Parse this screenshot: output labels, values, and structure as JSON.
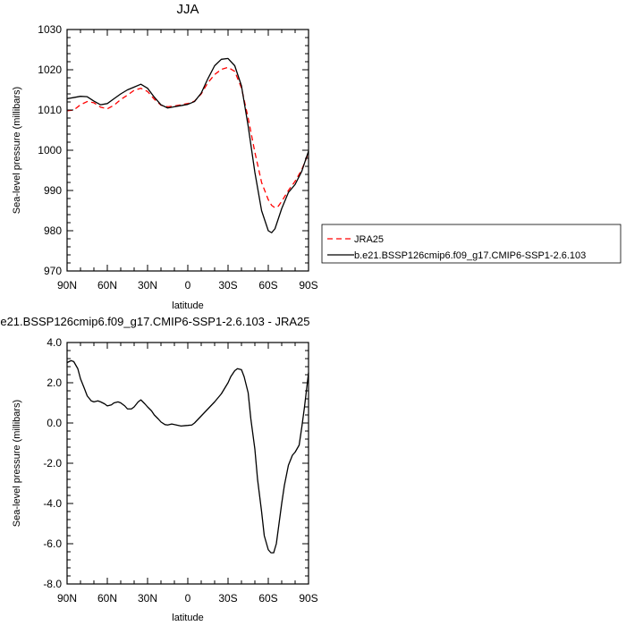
{
  "chart_data": [
    {
      "type": "line",
      "title": "JJA",
      "xlabel": "latitude",
      "ylabel": "Sea-level pressure (millibars)",
      "xlim": [
        90,
        -90
      ],
      "ylim": [
        970,
        1030
      ],
      "x_ticks": [
        90,
        60,
        30,
        0,
        -30,
        -60,
        -90
      ],
      "x_tick_labels": [
        "90N",
        "60N",
        "30N",
        "0",
        "30S",
        "60S",
        "90S"
      ],
      "y_ticks": [
        970,
        980,
        990,
        1000,
        1010,
        1020,
        1030
      ],
      "y_tick_labels": [
        "970",
        "980",
        "990",
        "1000",
        "1010",
        "1020",
        "1030"
      ],
      "legend_position": "right",
      "series": [
        {
          "name": "JRA25",
          "color": "#ff0000",
          "dash": "dashed",
          "x": [
            90,
            85,
            80,
            75,
            70,
            65,
            60,
            55,
            50,
            45,
            40,
            35,
            30,
            25,
            20,
            15,
            10,
            5,
            0,
            -5,
            -10,
            -15,
            -20,
            -25,
            -30,
            -35,
            -40,
            -45,
            -50,
            -55,
            -60,
            -62.5,
            -65,
            -67.5,
            -70,
            -75,
            -80,
            -85,
            -90
          ],
          "y": [
            1009.8,
            1010.0,
            1011.3,
            1012.1,
            1011.8,
            1010.7,
            1010.3,
            1011.2,
            1012.6,
            1013.7,
            1014.9,
            1015.4,
            1014.6,
            1012.7,
            1011.2,
            1010.8,
            1011.0,
            1011.3,
            1011.6,
            1012.2,
            1014.0,
            1016.8,
            1018.8,
            1020.1,
            1020.6,
            1019.6,
            1015.5,
            1008.0,
            999.5,
            992.0,
            987.7,
            986.3,
            985.7,
            986.1,
            987.3,
            990.0,
            992.3,
            995.2,
            999.3
          ]
        },
        {
          "name": "b.e21.BSSP126cmip6.f09_g17.CMIP6-SSP1-2.6.103",
          "color": "#000000",
          "dash": "solid",
          "x": [
            90,
            85,
            80,
            75,
            70,
            65,
            60,
            55,
            50,
            45,
            40,
            35,
            30,
            25,
            20,
            15,
            10,
            5,
            0,
            -5,
            -10,
            -15,
            -20,
            -25,
            -30,
            -35,
            -40,
            -45,
            -50,
            -55,
            -60,
            -62.5,
            -65,
            -67.5,
            -70,
            -75,
            -80,
            -85,
            -90
          ],
          "y": [
            1012.8,
            1013.1,
            1013.4,
            1013.3,
            1012.2,
            1011.3,
            1011.6,
            1012.8,
            1014.0,
            1015.0,
            1015.7,
            1016.4,
            1015.4,
            1013.2,
            1011.3,
            1010.5,
            1010.8,
            1011.1,
            1011.4,
            1012.1,
            1014.2,
            1017.8,
            1021.0,
            1022.6,
            1022.8,
            1021.0,
            1016.0,
            1006.0,
            994.5,
            985.0,
            980.0,
            979.5,
            980.5,
            983.0,
            985.5,
            989.5,
            991.5,
            994.8,
            999.8
          ]
        }
      ]
    },
    {
      "type": "line",
      "title": "b.e21.BSSP126cmip6.f09_g17.CMIP6-SSP1-2.6.103 - JRA25",
      "xlabel": "latitude",
      "ylabel": "Sea-level pressure (millibars)",
      "xlim": [
        90,
        -90
      ],
      "ylim": [
        -8,
        4
      ],
      "x_ticks": [
        90,
        60,
        30,
        0,
        -30,
        -60,
        -90
      ],
      "x_tick_labels": [
        "90N",
        "60N",
        "30N",
        "0",
        "30S",
        "60S",
        "90S"
      ],
      "y_ticks": [
        -8,
        -6,
        -4,
        -2,
        0,
        2,
        4
      ],
      "y_tick_labels": [
        "-8.0",
        "-6.0",
        "-4.0",
        "-2.0",
        "0.0",
        "2.0",
        "4.0"
      ],
      "series": [
        {
          "color": "#000000",
          "dash": "solid",
          "x": [
            90,
            87,
            85,
            82,
            80,
            77,
            75,
            72,
            70,
            67,
            65,
            62,
            60,
            57,
            55,
            52,
            50,
            47,
            45,
            42,
            40,
            37,
            35,
            32,
            30,
            27,
            25,
            22,
            20,
            17,
            15,
            12,
            10,
            7,
            5,
            2,
            0,
            -3,
            -5,
            -10,
            -15,
            -20,
            -25,
            -30,
            -32,
            -35,
            -37,
            -40,
            -42,
            -45,
            -47,
            -50,
            -52,
            -55,
            -57,
            -60,
            -62,
            -64,
            -66,
            -68,
            -70,
            -72,
            -75,
            -78,
            -80,
            -83,
            -85,
            -87,
            -90
          ],
          "y": [
            3.0,
            3.1,
            3.05,
            2.7,
            2.2,
            1.7,
            1.35,
            1.1,
            1.05,
            1.1,
            1.05,
            0.95,
            0.85,
            0.9,
            1.0,
            1.05,
            1.0,
            0.85,
            0.7,
            0.7,
            0.8,
            1.05,
            1.15,
            0.95,
            0.8,
            0.6,
            0.4,
            0.2,
            0.05,
            -0.08,
            -0.1,
            -0.05,
            -0.08,
            -0.12,
            -0.15,
            -0.13,
            -0.12,
            -0.1,
            0.0,
            0.35,
            0.7,
            1.05,
            1.45,
            2.0,
            2.3,
            2.6,
            2.7,
            2.65,
            2.3,
            1.5,
            0.2,
            -1.3,
            -2.8,
            -4.4,
            -5.6,
            -6.3,
            -6.45,
            -6.45,
            -6.0,
            -5.0,
            -4.0,
            -3.1,
            -2.1,
            -1.6,
            -1.45,
            -1.1,
            -0.2,
            0.8,
            2.5
          ]
        }
      ]
    }
  ]
}
